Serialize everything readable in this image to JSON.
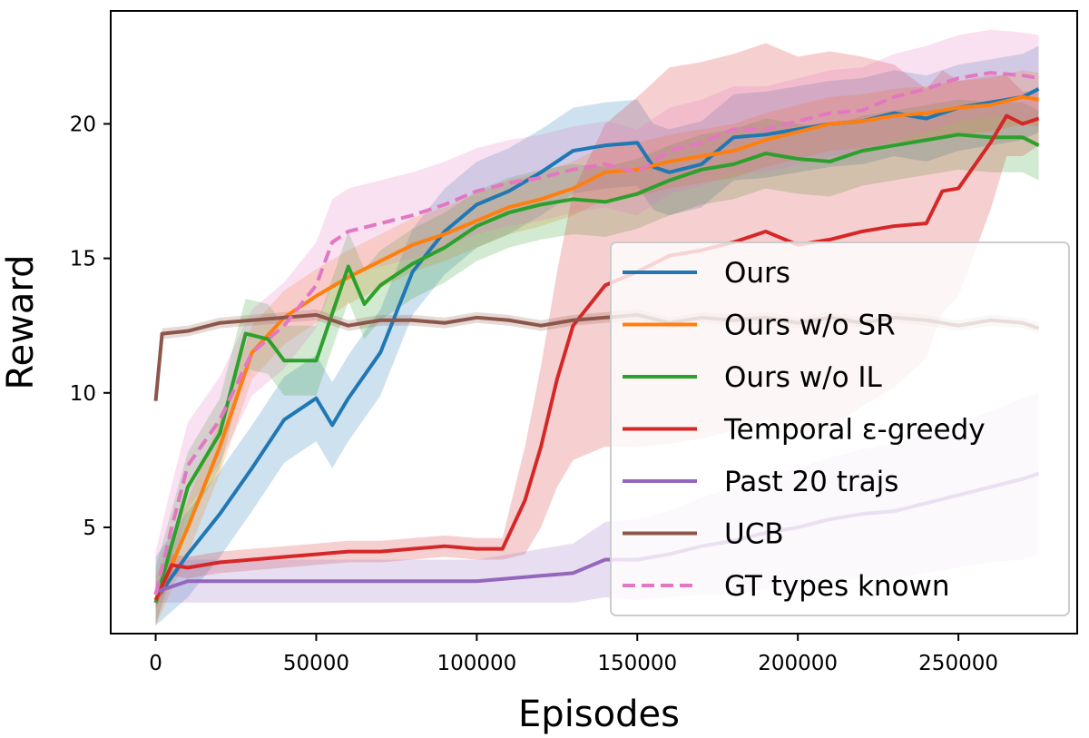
{
  "chart_data": {
    "type": "line",
    "title": "",
    "xlabel": "Episodes",
    "ylabel": "Reward",
    "xlim": [
      -14000,
      287000
    ],
    "ylim": [
      1.05,
      24.2
    ],
    "xticks": [
      0,
      50000,
      100000,
      150000,
      200000,
      250000
    ],
    "xtick_labels": [
      "0",
      "50000",
      "100000",
      "150000",
      "200000",
      "250000"
    ],
    "yticks": [
      5,
      10,
      15,
      20
    ],
    "ytick_labels": [
      "5",
      "10",
      "15",
      "20"
    ],
    "grid": false,
    "legend_position": "lower-right",
    "shaded_bands": true,
    "series": [
      {
        "name": "Ours",
        "color": "#1f77b4",
        "dash": false,
        "points": [
          [
            0,
            2.3
          ],
          [
            10000,
            4.0
          ],
          [
            20000,
            5.5
          ],
          [
            30000,
            7.2
          ],
          [
            40000,
            9.0
          ],
          [
            50000,
            9.8
          ],
          [
            55000,
            8.8
          ],
          [
            60000,
            9.8
          ],
          [
            70000,
            11.5
          ],
          [
            80000,
            14.5
          ],
          [
            90000,
            16.0
          ],
          [
            100000,
            17.0
          ],
          [
            110000,
            17.5
          ],
          [
            120000,
            18.2
          ],
          [
            130000,
            19.0
          ],
          [
            140000,
            19.2
          ],
          [
            150000,
            19.3
          ],
          [
            155000,
            18.4
          ],
          [
            160000,
            18.2
          ],
          [
            170000,
            18.5
          ],
          [
            180000,
            19.5
          ],
          [
            190000,
            19.6
          ],
          [
            200000,
            19.8
          ],
          [
            210000,
            20.0
          ],
          [
            220000,
            20.1
          ],
          [
            230000,
            20.4
          ],
          [
            240000,
            20.2
          ],
          [
            250000,
            20.6
          ],
          [
            260000,
            20.8
          ],
          [
            270000,
            21.0
          ],
          [
            275000,
            21.3
          ]
        ],
        "spread": 1.6
      },
      {
        "name": "Ours w/o SR",
        "color": "#ff7f0e",
        "dash": false,
        "points": [
          [
            0,
            2.2
          ],
          [
            10000,
            5.0
          ],
          [
            20000,
            8.0
          ],
          [
            30000,
            11.5
          ],
          [
            40000,
            12.8
          ],
          [
            50000,
            13.6
          ],
          [
            60000,
            14.3
          ],
          [
            70000,
            14.9
          ],
          [
            80000,
            15.5
          ],
          [
            90000,
            15.9
          ],
          [
            100000,
            16.4
          ],
          [
            110000,
            16.9
          ],
          [
            120000,
            17.2
          ],
          [
            130000,
            17.6
          ],
          [
            140000,
            18.2
          ],
          [
            150000,
            18.3
          ],
          [
            160000,
            18.6
          ],
          [
            170000,
            18.8
          ],
          [
            180000,
            19.0
          ],
          [
            190000,
            19.4
          ],
          [
            200000,
            19.7
          ],
          [
            210000,
            20.0
          ],
          [
            220000,
            20.1
          ],
          [
            230000,
            20.3
          ],
          [
            240000,
            20.4
          ],
          [
            250000,
            20.6
          ],
          [
            260000,
            20.7
          ],
          [
            270000,
            21.0
          ],
          [
            275000,
            20.9
          ]
        ],
        "spread": 1.0
      },
      {
        "name": "Ours w/o IL",
        "color": "#2ca02c",
        "dash": false,
        "points": [
          [
            0,
            2.2
          ],
          [
            10000,
            6.5
          ],
          [
            20000,
            8.5
          ],
          [
            28000,
            12.2
          ],
          [
            35000,
            12.0
          ],
          [
            40000,
            11.2
          ],
          [
            50000,
            11.2
          ],
          [
            60000,
            14.7
          ],
          [
            65000,
            13.3
          ],
          [
            70000,
            14.0
          ],
          [
            80000,
            14.8
          ],
          [
            90000,
            15.4
          ],
          [
            100000,
            16.2
          ],
          [
            110000,
            16.7
          ],
          [
            120000,
            17.0
          ],
          [
            130000,
            17.2
          ],
          [
            140000,
            17.1
          ],
          [
            150000,
            17.4
          ],
          [
            160000,
            17.9
          ],
          [
            170000,
            18.3
          ],
          [
            180000,
            18.5
          ],
          [
            190000,
            18.9
          ],
          [
            200000,
            18.7
          ],
          [
            210000,
            18.6
          ],
          [
            220000,
            19.0
          ],
          [
            230000,
            19.2
          ],
          [
            240000,
            19.4
          ],
          [
            250000,
            19.6
          ],
          [
            260000,
            19.5
          ],
          [
            270000,
            19.5
          ],
          [
            275000,
            19.2
          ]
        ],
        "spread": 1.3
      },
      {
        "name": "Temporal ε-greedy",
        "color": "#d62728",
        "dash": false,
        "points": [
          [
            0,
            2.3
          ],
          [
            5000,
            3.6
          ],
          [
            10000,
            3.5
          ],
          [
            20000,
            3.7
          ],
          [
            30000,
            3.8
          ],
          [
            40000,
            3.9
          ],
          [
            50000,
            4.0
          ],
          [
            60000,
            4.1
          ],
          [
            70000,
            4.1
          ],
          [
            80000,
            4.2
          ],
          [
            90000,
            4.3
          ],
          [
            100000,
            4.2
          ],
          [
            108000,
            4.2
          ],
          [
            115000,
            6.0
          ],
          [
            120000,
            8.0
          ],
          [
            125000,
            10.5
          ],
          [
            130000,
            12.5
          ],
          [
            140000,
            14.0
          ],
          [
            150000,
            14.5
          ],
          [
            160000,
            15.1
          ],
          [
            170000,
            15.3
          ],
          [
            180000,
            15.6
          ],
          [
            190000,
            16.0
          ],
          [
            200000,
            15.5
          ],
          [
            210000,
            15.7
          ],
          [
            220000,
            16.0
          ],
          [
            230000,
            16.2
          ],
          [
            240000,
            16.3
          ],
          [
            245000,
            17.5
          ],
          [
            250000,
            17.6
          ],
          [
            260000,
            19.3
          ],
          [
            265000,
            20.3
          ],
          [
            270000,
            20.0
          ],
          [
            275000,
            20.2
          ]
        ],
        "spread": [
          0.3,
          0.4,
          0.4,
          0.4,
          0.4,
          0.4,
          0.4,
          0.4,
          0.4,
          0.4,
          0.4,
          0.4,
          0.4,
          2.0,
          3.0,
          4.0,
          5.0,
          6.0,
          6.5,
          7.0,
          7.0,
          7.0,
          7.0,
          7.0,
          7.0,
          6.5,
          6.0,
          5.0,
          4.5,
          4.0,
          2.5,
          1.5,
          1.2,
          1.0
        ]
      },
      {
        "name": "Past 20 trajs",
        "color": "#9467bd",
        "dash": false,
        "points": [
          [
            0,
            2.6
          ],
          [
            10000,
            3.0
          ],
          [
            30000,
            3.0
          ],
          [
            50000,
            3.0
          ],
          [
            70000,
            3.0
          ],
          [
            90000,
            3.0
          ],
          [
            100000,
            3.0
          ],
          [
            110000,
            3.1
          ],
          [
            120000,
            3.2
          ],
          [
            130000,
            3.3
          ],
          [
            140000,
            3.8
          ],
          [
            150000,
            3.8
          ],
          [
            160000,
            4.0
          ],
          [
            170000,
            4.3
          ],
          [
            180000,
            4.5
          ],
          [
            190000,
            4.8
          ],
          [
            200000,
            5.0
          ],
          [
            210000,
            5.3
          ],
          [
            220000,
            5.5
          ],
          [
            230000,
            5.6
          ],
          [
            240000,
            5.9
          ],
          [
            250000,
            6.2
          ],
          [
            260000,
            6.5
          ],
          [
            270000,
            6.8
          ],
          [
            275000,
            7.0
          ]
        ],
        "spread": [
          0.4,
          0.8,
          0.8,
          0.8,
          0.8,
          0.8,
          0.8,
          0.9,
          1.0,
          1.1,
          1.4,
          1.5,
          1.6,
          1.8,
          2.0,
          2.1,
          2.2,
          2.3,
          2.4,
          2.5,
          2.6,
          2.7,
          2.8,
          3.0,
          3.0
        ]
      },
      {
        "name": "UCB",
        "color": "#8c564b",
        "dash": false,
        "points": [
          [
            0,
            9.7
          ],
          [
            2000,
            12.2
          ],
          [
            10000,
            12.3
          ],
          [
            20000,
            12.6
          ],
          [
            30000,
            12.7
          ],
          [
            40000,
            12.8
          ],
          [
            50000,
            12.9
          ],
          [
            60000,
            12.5
          ],
          [
            70000,
            12.7
          ],
          [
            80000,
            12.7
          ],
          [
            90000,
            12.6
          ],
          [
            100000,
            12.8
          ],
          [
            110000,
            12.7
          ],
          [
            120000,
            12.5
          ],
          [
            130000,
            12.7
          ],
          [
            140000,
            12.8
          ],
          [
            150000,
            12.9
          ],
          [
            160000,
            12.6
          ],
          [
            170000,
            12.8
          ],
          [
            180000,
            12.7
          ],
          [
            190000,
            12.8
          ],
          [
            200000,
            12.6
          ],
          [
            210000,
            12.8
          ],
          [
            220000,
            12.6
          ],
          [
            230000,
            12.8
          ],
          [
            240000,
            12.7
          ],
          [
            250000,
            12.5
          ],
          [
            260000,
            12.7
          ],
          [
            270000,
            12.6
          ],
          [
            275000,
            12.4
          ]
        ],
        "spread": 0.2
      },
      {
        "name": "GT types known",
        "color": "#e377c2",
        "dash": true,
        "points": [
          [
            0,
            2.5
          ],
          [
            5000,
            5.0
          ],
          [
            10000,
            7.3
          ],
          [
            20000,
            9.0
          ],
          [
            30000,
            11.5
          ],
          [
            40000,
            12.5
          ],
          [
            50000,
            14.0
          ],
          [
            55000,
            15.6
          ],
          [
            60000,
            16.0
          ],
          [
            70000,
            16.3
          ],
          [
            80000,
            16.6
          ],
          [
            90000,
            17.0
          ],
          [
            100000,
            17.5
          ],
          [
            110000,
            17.8
          ],
          [
            120000,
            18.0
          ],
          [
            130000,
            18.3
          ],
          [
            140000,
            18.5
          ],
          [
            150000,
            18.2
          ],
          [
            160000,
            19.0
          ],
          [
            170000,
            19.3
          ],
          [
            180000,
            19.8
          ],
          [
            190000,
            19.8
          ],
          [
            200000,
            20.1
          ],
          [
            210000,
            20.4
          ],
          [
            220000,
            20.5
          ],
          [
            230000,
            21.0
          ],
          [
            240000,
            21.3
          ],
          [
            250000,
            21.7
          ],
          [
            260000,
            21.9
          ],
          [
            270000,
            21.8
          ],
          [
            275000,
            21.7
          ]
        ],
        "spread": 1.6
      }
    ]
  }
}
